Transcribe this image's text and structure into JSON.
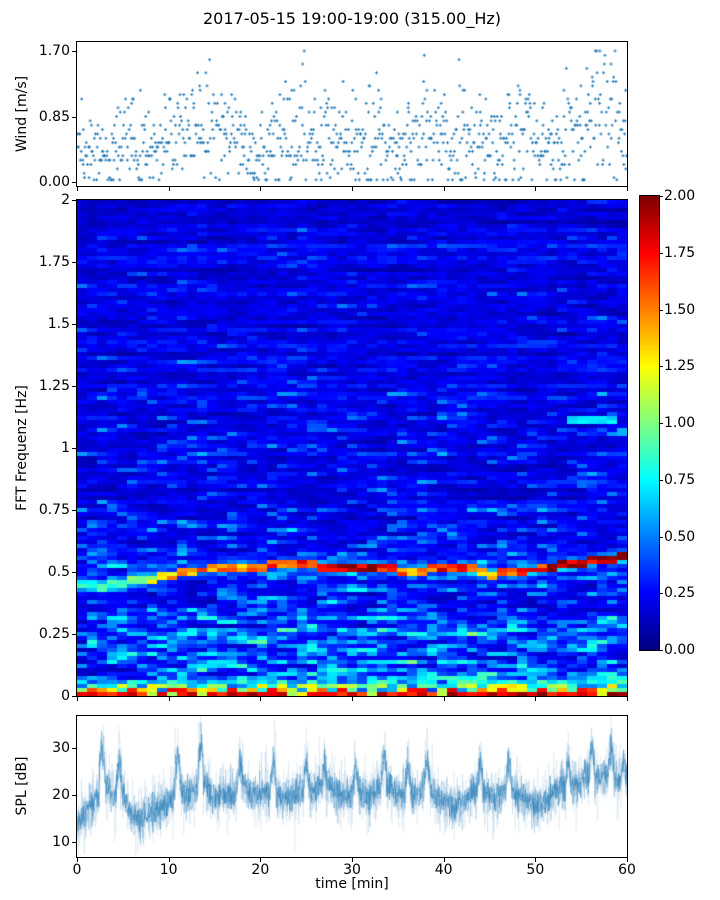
{
  "figure": {
    "title": "2017-05-15 19:00-19:00 (315.00_Hz)",
    "background_color": "#ffffff",
    "accent_blue": "#1f77b4",
    "spine_color": "#000000"
  },
  "chart_data": [
    {
      "id": "wind",
      "type": "scatter",
      "ylabel": "Wind [m/s]",
      "yticks": [
        "0.00",
        "0.85",
        "1.70"
      ],
      "ytick_values": [
        0,
        0.85,
        1.7
      ],
      "ylim": [
        -0.052,
        1.817
      ],
      "xlim": [
        0,
        60
      ],
      "marker_color": "#1f77b4",
      "quantization_step": 0.0567,
      "samples_per_minute": 14,
      "mean_by_minute": [
        0.35,
        0.35,
        0.3,
        0.25,
        0.45,
        0.55,
        0.5,
        0.35,
        0.3,
        0.5,
        0.55,
        0.6,
        0.55,
        0.6,
        0.65,
        0.6,
        0.55,
        0.45,
        0.35,
        0.3,
        0.35,
        0.5,
        0.55,
        0.6,
        0.65,
        0.55,
        0.5,
        0.55,
        0.5,
        0.45,
        0.55,
        0.6,
        0.6,
        0.55,
        0.45,
        0.3,
        0.5,
        0.65,
        0.6,
        0.5,
        0.55,
        0.65,
        0.6,
        0.6,
        0.55,
        0.45,
        0.4,
        0.55,
        0.6,
        0.55,
        0.5,
        0.35,
        0.45,
        0.6,
        0.65,
        0.7,
        0.85,
        0.9,
        0.75,
        0.6,
        0.5
      ],
      "max_by_minute": [
        0.68,
        0.74,
        0.68,
        0.57,
        0.91,
        1.02,
        1.19,
        0.85,
        0.62,
        0.96,
        1.08,
        1.13,
        0.96,
        1.19,
        1.25,
        1.13,
        1.02,
        0.91,
        0.74,
        0.57,
        0.68,
        1.02,
        1.13,
        1.19,
        1.52,
        1.08,
        0.96,
        1.02,
        0.96,
        0.91,
        1.08,
        1.25,
        1.19,
        1.08,
        0.91,
        0.62,
        1.02,
        1.3,
        1.19,
        1.02,
        1.13,
        1.25,
        1.19,
        1.13,
        1.08,
        0.85,
        0.79,
        1.13,
        1.19,
        1.08,
        0.96,
        0.68,
        0.85,
        1.19,
        1.25,
        1.47,
        1.7,
        1.7,
        1.53,
        1.19,
        0.96
      ]
    },
    {
      "id": "spectrogram",
      "type": "heatmap",
      "ylabel": "FFT Frequenz [Hz]",
      "yticks": [
        "0",
        "0.25",
        "0.5",
        "0.75",
        "1",
        "1.25",
        "1.5",
        "1.75",
        "2"
      ],
      "ytick_values": [
        0,
        0.25,
        0.5,
        0.75,
        1,
        1.25,
        1.5,
        1.75,
        2
      ],
      "ylim": [
        0,
        2
      ],
      "xlim": [
        0,
        60
      ],
      "colormap": "jet",
      "clim": [
        0,
        2
      ],
      "time_bins": 55,
      "freq_bins": 124,
      "band_track": {
        "t": [
          0,
          3,
          6,
          9,
          12,
          15,
          18,
          21,
          24,
          27,
          30,
          33,
          36,
          39,
          42,
          45,
          48,
          51,
          54,
          57,
          60
        ],
        "f": [
          0.45,
          0.44,
          0.46,
          0.48,
          0.5,
          0.515,
          0.52,
          0.525,
          0.53,
          0.52,
          0.515,
          0.52,
          0.5,
          0.51,
          0.52,
          0.49,
          0.5,
          0.515,
          0.53,
          0.55,
          0.56
        ],
        "intensity": [
          0.8,
          0.9,
          1.0,
          1.3,
          1.5,
          1.6,
          1.5,
          1.6,
          1.7,
          1.9,
          2.0,
          1.9,
          1.5,
          1.7,
          1.8,
          1.4,
          1.7,
          1.8,
          1.9,
          2.0,
          2.0
        ]
      },
      "secondary_streak": {
        "t_start": 53.5,
        "t_end": 59.2,
        "f": 1.11,
        "value": 0.78
      },
      "colorbar": {
        "ticks": [
          "0.00",
          "0.25",
          "0.50",
          "0.75",
          "1.00",
          "1.25",
          "1.50",
          "1.75",
          "2.00"
        ],
        "tick_values": [
          0,
          0.25,
          0.5,
          0.75,
          1,
          1.25,
          1.5,
          1.75,
          2
        ]
      }
    },
    {
      "id": "spl",
      "type": "line",
      "ylabel": "SPL [dB]",
      "xlabel": "time [min]",
      "yticks": [
        "10",
        "20",
        "30"
      ],
      "ytick_values": [
        10,
        20,
        30
      ],
      "xticks": [
        "0",
        "10",
        "20",
        "30",
        "40",
        "50",
        "60"
      ],
      "xtick_values": [
        0,
        10,
        20,
        30,
        40,
        50,
        60
      ],
      "ylim": [
        6.8,
        36.8
      ],
      "xlim": [
        0,
        60
      ],
      "line_color": "#1f77b4",
      "mean_by_minute": [
        13.5,
        16.5,
        19,
        22.5,
        19.5,
        20.5,
        14.5,
        14,
        16.5,
        17.5,
        18,
        21.5,
        19.5,
        21,
        22,
        19,
        19.5,
        20.5,
        22,
        20.5,
        20,
        20.5,
        20,
        19.5,
        20,
        21,
        21.5,
        23,
        21,
        19.5,
        20,
        20.5,
        19.5,
        21.5,
        22,
        20,
        20.5,
        20,
        21.5,
        20,
        19,
        17,
        18.5,
        20,
        20.5,
        20,
        19.5,
        21.5,
        20,
        19,
        17.5,
        18.5,
        20.5,
        22,
        22.5,
        23,
        24.5,
        23.5,
        24.5,
        23,
        23.5
      ],
      "peaks": [
        [
          2.7,
          31
        ],
        [
          4.6,
          28.5
        ],
        [
          11.0,
          29.5
        ],
        [
          13.5,
          31.5
        ],
        [
          17.8,
          28
        ],
        [
          21.4,
          27
        ],
        [
          25.0,
          27.5
        ],
        [
          27.0,
          27
        ],
        [
          30.4,
          27
        ],
        [
          33.5,
          29
        ],
        [
          36.1,
          27
        ],
        [
          38.2,
          28.5
        ],
        [
          44.0,
          27.5
        ],
        [
          47.1,
          28
        ],
        [
          53.6,
          27.5
        ],
        [
          56.2,
          30.5
        ],
        [
          58.3,
          31
        ],
        [
          59.6,
          28
        ]
      ]
    }
  ]
}
